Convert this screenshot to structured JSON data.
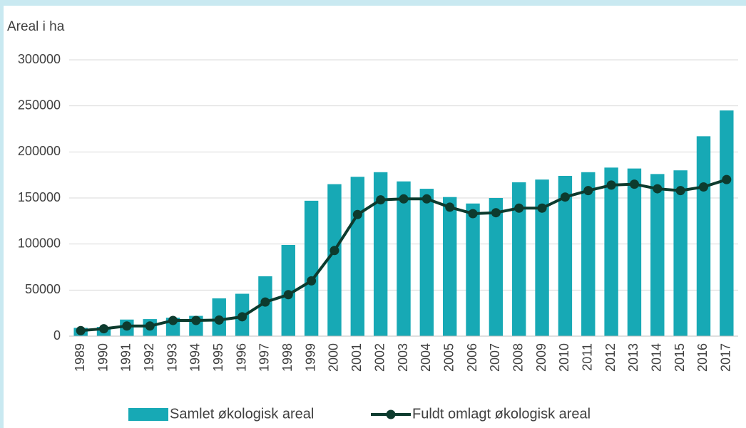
{
  "chart_data": {
    "type": "bar_line",
    "y_axis_label": "Areal i ha",
    "categories": [
      "1989",
      "1990",
      "1991",
      "1992",
      "1993",
      "1994",
      "1995",
      "1996",
      "1997",
      "1998",
      "1999",
      "2000",
      "2001",
      "2002",
      "2003",
      "2004",
      "2005",
      "2006",
      "2007",
      "2008",
      "2009",
      "2010",
      "2011",
      "2012",
      "2013",
      "2014",
      "2015",
      "2016",
      "2017"
    ],
    "series": [
      {
        "name": "Samlet økologisk areal",
        "type": "bar",
        "color": "#17a9b5",
        "values": [
          9000,
          10000,
          18000,
          18500,
          20000,
          22000,
          41000,
          46000,
          65000,
          99000,
          147000,
          165000,
          173000,
          178000,
          168000,
          160000,
          151000,
          144000,
          150000,
          167000,
          170000,
          174000,
          178000,
          183000,
          182000,
          176000,
          180000,
          217000,
          245000
        ]
      },
      {
        "name": "Fuldt omlagt økologisk areal",
        "type": "line",
        "color": "#0d3b2e",
        "values": [
          6000,
          8000,
          11000,
          11000,
          17000,
          17000,
          17500,
          21000,
          37000,
          45000,
          60000,
          93000,
          132000,
          148000,
          149000,
          149000,
          140000,
          133000,
          134000,
          139000,
          139000,
          151000,
          158000,
          164000,
          165000,
          160000,
          158000,
          162000,
          170000
        ]
      }
    ],
    "ylim": [
      0,
      300000
    ],
    "yticks": [
      0,
      50000,
      100000,
      150000,
      200000,
      250000,
      300000
    ],
    "grid": true,
    "legend": "bottom"
  }
}
